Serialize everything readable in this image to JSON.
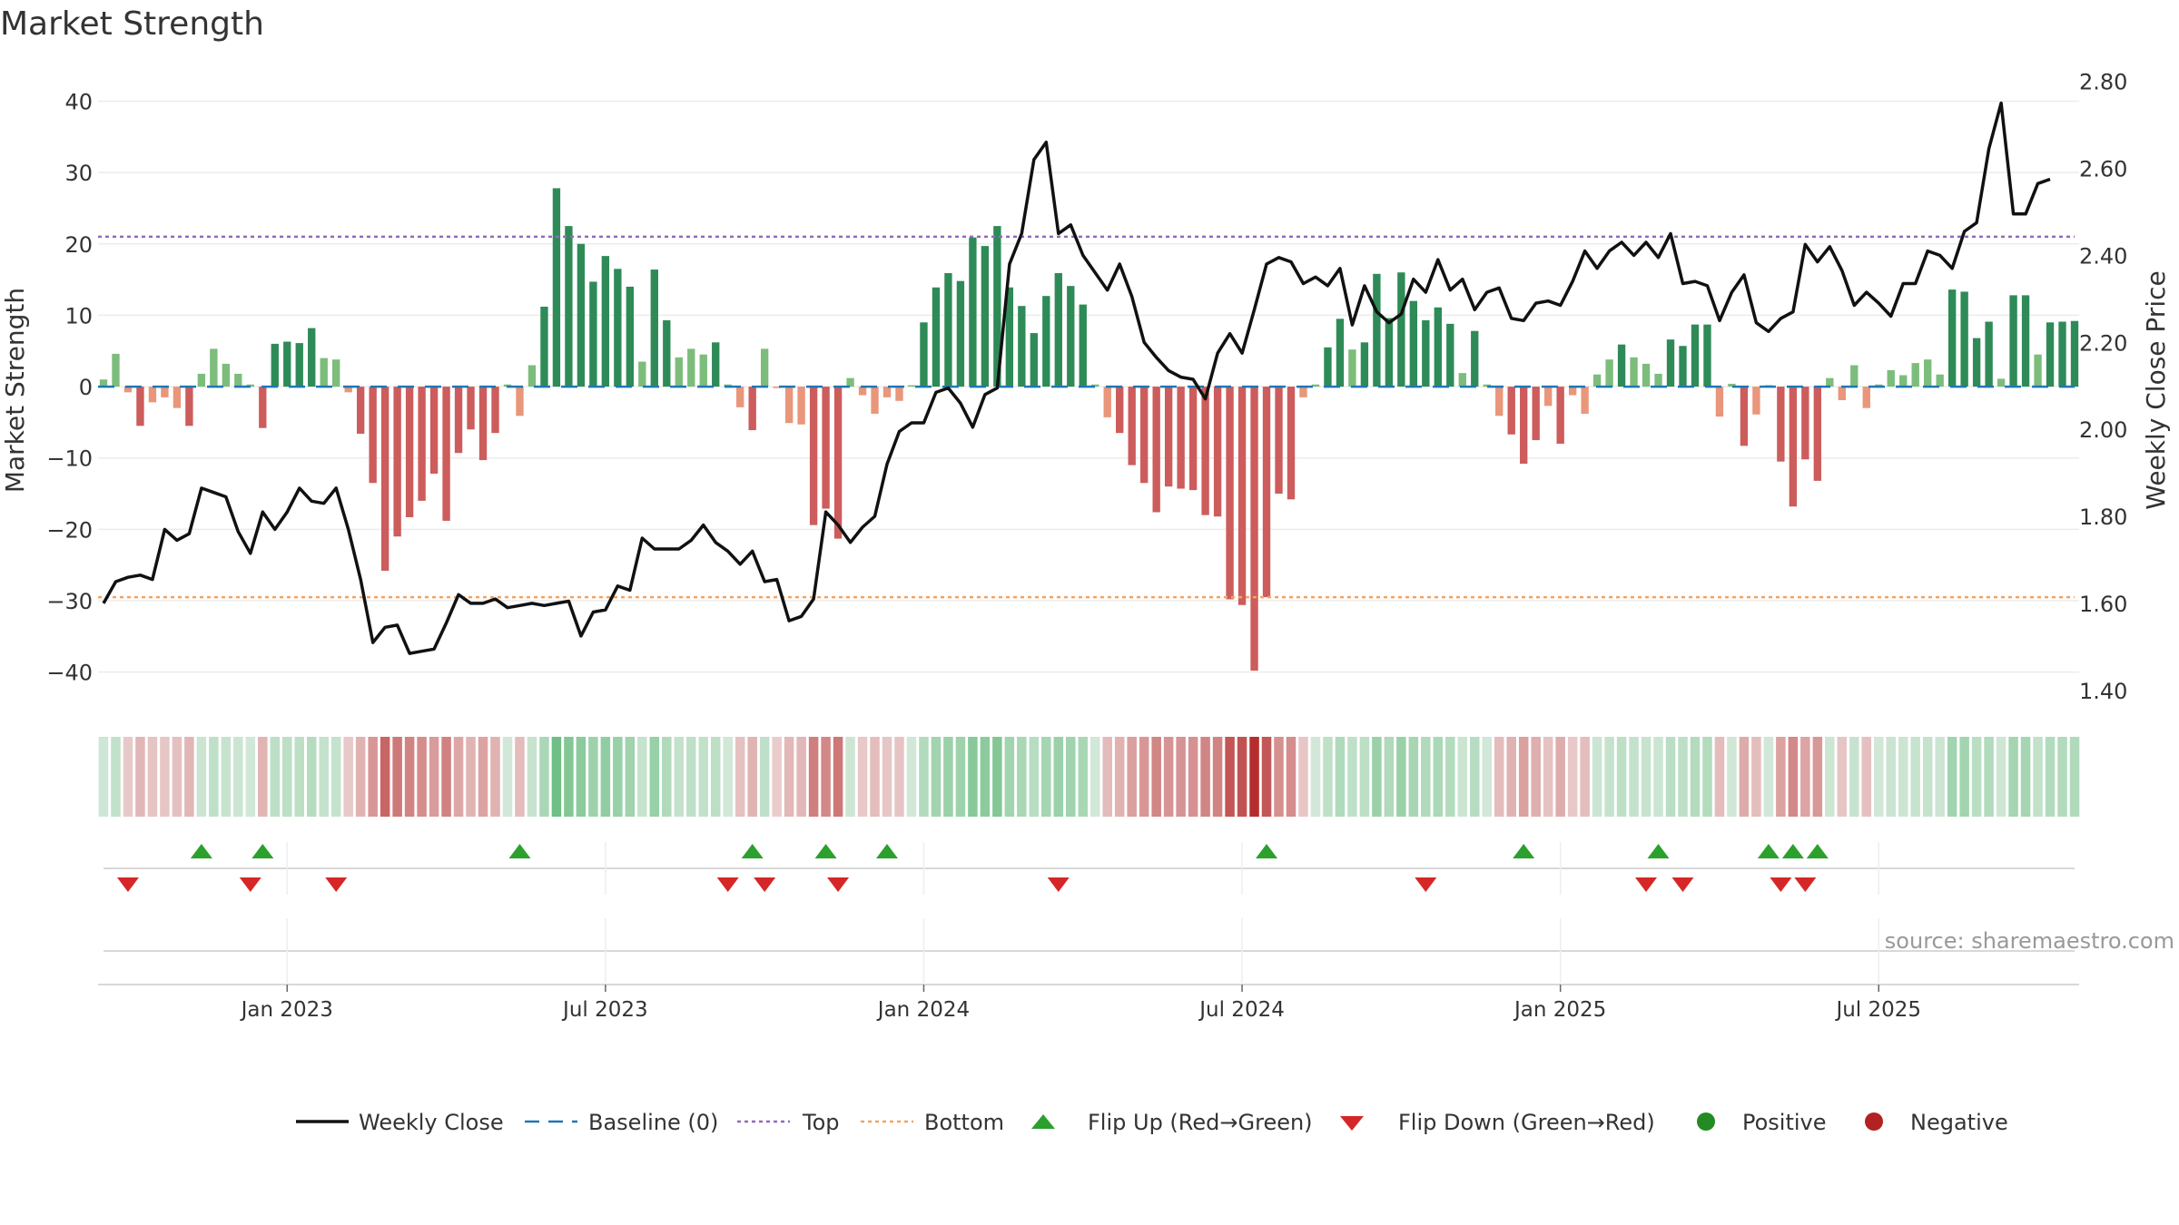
{
  "chart_data": {
    "type": "bar+line",
    "title": "Market Strength",
    "ylabel_left": "Market Strength",
    "ylabel_right": "Weekly Close Price",
    "source": "source: sharemaestro.com",
    "ylim_left": [
      -45,
      44
    ],
    "ylim_right": [
      1.36,
      2.82
    ],
    "left_ticks": [
      40,
      30,
      20,
      10,
      0,
      -10,
      -20,
      -30,
      -40
    ],
    "left_tick_labels": [
      "40",
      "30",
      "20",
      "10",
      "0",
      "−10",
      "−20",
      "−30",
      "−40"
    ],
    "right_ticks": [
      2.8,
      2.6,
      2.4,
      2.2,
      2.0,
      1.8,
      1.6,
      1.4
    ],
    "right_tick_labels": [
      "2.80",
      "2.60",
      "2.40",
      "2.20",
      "2.00",
      "1.80",
      "1.60",
      "1.40"
    ],
    "top_level": 21,
    "bottom_level": -29.5,
    "x_date_ticks": [
      {
        "week": 15,
        "label": "Jan 2023"
      },
      {
        "week": 41,
        "label": "Jul 2023"
      },
      {
        "week": 67,
        "label": "Jan 2024"
      },
      {
        "week": 93,
        "label": "Jul 2024"
      },
      {
        "week": 119,
        "label": "Jan 2025"
      },
      {
        "week": 145,
        "label": "Jul 2025"
      }
    ],
    "strength": [
      1,
      4.6,
      -0.8,
      -5.5,
      -2.2,
      -1.5,
      -3,
      -5.5,
      1.8,
      5.3,
      3.2,
      1.8,
      0.3,
      -5.8,
      6,
      6.3,
      6.1,
      8.2,
      4,
      3.8,
      -0.8,
      -6.6,
      -13.5,
      -25.8,
      -21,
      -18.3,
      -16,
      -12.2,
      -18.8,
      -9.3,
      -6,
      -10.3,
      -6.5,
      0.3,
      -4.1,
      3,
      11.2,
      27.8,
      22.5,
      20,
      14.7,
      18.3,
      16.5,
      14,
      3.5,
      16.4,
      9.3,
      4.1,
      5.3,
      4.5,
      6.2,
      0.3,
      -2.9,
      -6.1,
      5.3,
      -0.2,
      -5.1,
      -5.3,
      -19.4,
      -17.1,
      -21.3,
      1.2,
      -1.2,
      -3.8,
      -1.5,
      -2,
      0.2,
      9,
      13.9,
      15.9,
      14.8,
      20.9,
      19.7,
      22.5,
      13.9,
      11.3,
      7.5,
      12.7,
      15.9,
      14.1,
      11.5,
      0.3,
      -4.3,
      -6.5,
      -11,
      -13.5,
      -17.6,
      -14,
      -14.3,
      -14.5,
      -18,
      -18.2,
      -29.8,
      -30.6,
      -39.8,
      -29.5,
      -15,
      -15.8,
      -1.5,
      0.3,
      5.5,
      9.5,
      5.2,
      6.2,
      15.8,
      9.6,
      16,
      12,
      9.3,
      11.1,
      8.8,
      1.9,
      7.8,
      0.3,
      -4.1,
      -6.7,
      -10.8,
      -7.5,
      -2.7,
      -8,
      -1.2,
      -3.8,
      1.7,
      3.8,
      5.9,
      4.1,
      3.2,
      1.8,
      6.6,
      5.7,
      8.7,
      8.7,
      -4.2,
      0.4,
      -8.3,
      -3.9,
      0.2,
      -10.5,
      -16.8,
      -10.2,
      -13.2,
      1.2,
      -1.9,
      3,
      -3,
      0.3,
      2.3,
      1.6,
      3.3,
      3.8,
      1.7,
      13.6,
      13.3,
      6.8,
      9.1,
      1.1,
      12.8,
      12.8,
      4.5,
      9,
      9.1,
      9.2
    ],
    "close": [
      1.6,
      1.65,
      1.66,
      1.665,
      1.655,
      1.77,
      1.745,
      1.76,
      1.865,
      1.855,
      1.845,
      1.765,
      1.715,
      1.81,
      1.77,
      1.81,
      1.865,
      1.835,
      1.83,
      1.865,
      1.77,
      1.655,
      1.51,
      1.545,
      1.55,
      1.485,
      1.49,
      1.495,
      1.555,
      1.62,
      1.6,
      1.6,
      1.61,
      1.59,
      1.595,
      1.6,
      1.595,
      1.6,
      1.605,
      1.525,
      1.58,
      1.585,
      1.64,
      1.63,
      1.75,
      1.725,
      1.725,
      1.725,
      1.745,
      1.78,
      1.74,
      1.72,
      1.69,
      1.72,
      1.65,
      1.655,
      1.56,
      1.57,
      1.61,
      1.81,
      1.78,
      1.74,
      1.775,
      1.8,
      1.92,
      1.995,
      2.015,
      2.015,
      2.085,
      2.095,
      2.06,
      2.005,
      2.08,
      2.095,
      2.38,
      2.45,
      2.62,
      2.66,
      2.45,
      2.47,
      2.4,
      2.36,
      2.32,
      2.38,
      2.305,
      2.2,
      2.165,
      2.135,
      2.12,
      2.115,
      2.07,
      2.175,
      2.22,
      2.175,
      2.275,
      2.38,
      2.395,
      2.385,
      2.335,
      2.35,
      2.33,
      2.37,
      2.24,
      2.33,
      2.27,
      2.245,
      2.265,
      2.345,
      2.315,
      2.39,
      2.32,
      2.345,
      2.275,
      2.315,
      2.325,
      2.255,
      2.25,
      2.29,
      2.295,
      2.285,
      2.34,
      2.41,
      2.37,
      2.41,
      2.43,
      2.4,
      2.43,
      2.395,
      2.45,
      2.335,
      2.34,
      2.33,
      2.25,
      2.315,
      2.355,
      2.245,
      2.225,
      2.255,
      2.27,
      2.425,
      2.385,
      2.42,
      2.365,
      2.285,
      2.315,
      2.29,
      2.26,
      2.335,
      2.335,
      2.41,
      2.4,
      2.37,
      2.455,
      2.475,
      2.645,
      2.75,
      2.495,
      2.495,
      2.565,
      2.575
    ],
    "flip_up_weeks": [
      8,
      13,
      34,
      53,
      59,
      64,
      95,
      116,
      127,
      136,
      138,
      140
    ],
    "flip_down_weeks": [
      2,
      12,
      19,
      51,
      54,
      60,
      78,
      108,
      126,
      129,
      137,
      139
    ],
    "legend": {
      "weekly_close": "Weekly Close",
      "baseline": "Baseline (0)",
      "top": "Top",
      "bottom": "Bottom",
      "flip_up": "Flip Up (Red→Green)",
      "flip_down": "Flip Down (Green→Red)",
      "positive": "Positive",
      "negative": "Negative"
    },
    "colors": {
      "pos_strong": "#2e8b57",
      "pos_light": "#7cbd7c",
      "neg_strong": "#cd5c5c",
      "neg_light": "#e9967a",
      "line": "#111111",
      "baseline": "#1f77b4",
      "top": "#9467bd",
      "bottom": "#f4a460",
      "flip_up": "#2ca02c",
      "flip_down": "#d62728",
      "positive_dot": "#228b22",
      "negative_dot": "#b22222"
    }
  }
}
